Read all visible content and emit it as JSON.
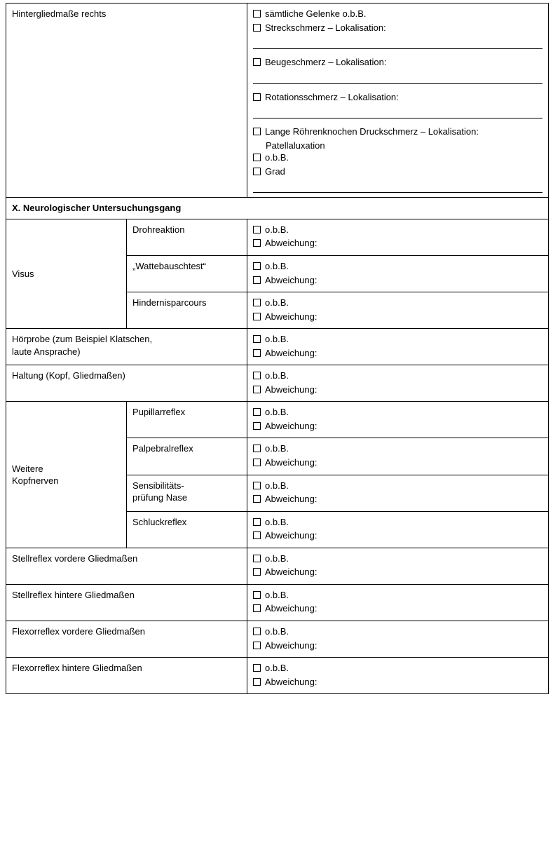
{
  "top": {
    "row_label": "Hintergliedmaße rechts",
    "items": [
      "sämtliche Gelenke o.b.B.",
      "Streckschmerz – Lokalisation:",
      "Beugeschmerz – Lokalisation:",
      "Rotationsschmerz – Lokalisation:",
      "Lange Röhrenknochen Druckschmerz – Lokalisation:"
    ],
    "sub_indent": "Patellaluxation",
    "tail": [
      "o.b.B.",
      "Grad"
    ]
  },
  "section_header": "X.  Neurologischer Untersuchungsgang",
  "obB": "o.b.B.",
  "abw": "Abweichung:",
  "visus": {
    "label": "Visus",
    "rows": [
      "Drohreaktion",
      "„Wattebauschtest“",
      "Hindernisparcours"
    ]
  },
  "hoerprobe": "Hörprobe (zum Beispiel Klatschen,\nlaute Ansprache)",
  "haltung": "Haltung (Kopf, Gliedmaßen)",
  "kopfnerven": {
    "label": "Weitere\nKopfnerven",
    "rows": [
      "Pupillarreflex",
      "Palpebralreflex",
      "Sensibilitäts-\nprüfung Nase",
      "Schluckreflex"
    ]
  },
  "simple_rows": [
    "Stellreflex vordere Gliedmaßen",
    "Stellreflex hintere Gliedmaßen",
    "Flexorreflex vordere Gliedmaßen",
    "Flexorreflex hintere Gliedmaßen"
  ]
}
